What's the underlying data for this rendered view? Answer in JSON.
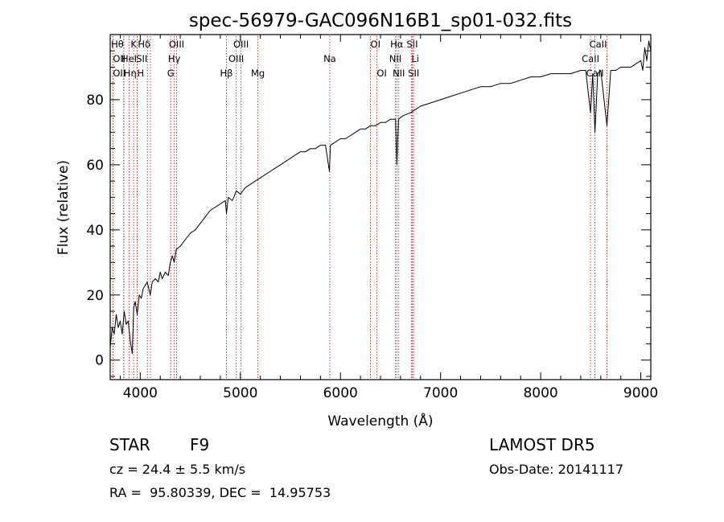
{
  "chart_data": {
    "type": "line",
    "title": "spec-56979-GAC096N16B1_sp01-032.fits",
    "xlabel": "Wavelength (Å)",
    "ylabel": "Flux (relative)",
    "xlim": [
      3700,
      9100
    ],
    "ylim": [
      -6,
      100
    ],
    "x_ticks": [
      4000,
      5000,
      6000,
      7000,
      8000,
      9000
    ],
    "y_ticks": [
      0,
      20,
      40,
      60,
      80
    ],
    "grid": false,
    "line_color": "#000000",
    "marker_color": "#cc2222",
    "series": [
      {
        "points": [
          [
            3700,
            4
          ],
          [
            3720,
            10
          ],
          [
            3740,
            8
          ],
          [
            3760,
            14
          ],
          [
            3780,
            10
          ],
          [
            3800,
            12
          ],
          [
            3820,
            8
          ],
          [
            3840,
            15
          ],
          [
            3860,
            11
          ],
          [
            3880,
            12
          ],
          [
            3900,
            6
          ],
          [
            3920,
            2
          ],
          [
            3935,
            16
          ],
          [
            3950,
            18
          ],
          [
            3970,
            14
          ],
          [
            3990,
            20
          ],
          [
            4010,
            19
          ],
          [
            4030,
            22
          ],
          [
            4050,
            23
          ],
          [
            4070,
            24
          ],
          [
            4100,
            20
          ],
          [
            4120,
            24
          ],
          [
            4150,
            25
          ],
          [
            4180,
            24
          ],
          [
            4200,
            27
          ],
          [
            4220,
            25
          ],
          [
            4250,
            27
          ],
          [
            4280,
            26
          ],
          [
            4300,
            30
          ],
          [
            4320,
            32
          ],
          [
            4340,
            30
          ],
          [
            4360,
            34
          ],
          [
            4400,
            35
          ],
          [
            4450,
            37
          ],
          [
            4500,
            39
          ],
          [
            4550,
            40
          ],
          [
            4600,
            42
          ],
          [
            4650,
            44
          ],
          [
            4700,
            46
          ],
          [
            4750,
            47
          ],
          [
            4800,
            48
          ],
          [
            4850,
            49
          ],
          [
            4861,
            45
          ],
          [
            4880,
            50
          ],
          [
            4920,
            49
          ],
          [
            4960,
            52
          ],
          [
            5000,
            51
          ],
          [
            5050,
            53
          ],
          [
            5100,
            54
          ],
          [
            5150,
            55
          ],
          [
            5200,
            56
          ],
          [
            5250,
            57
          ],
          [
            5300,
            58
          ],
          [
            5350,
            59
          ],
          [
            5400,
            60
          ],
          [
            5450,
            61
          ],
          [
            5500,
            62
          ],
          [
            5550,
            63
          ],
          [
            5600,
            64
          ],
          [
            5650,
            64
          ],
          [
            5700,
            65
          ],
          [
            5750,
            65
          ],
          [
            5800,
            66
          ],
          [
            5850,
            66
          ],
          [
            5890,
            58
          ],
          [
            5900,
            66
          ],
          [
            5950,
            67
          ],
          [
            6000,
            68
          ],
          [
            6050,
            68
          ],
          [
            6100,
            69
          ],
          [
            6150,
            70
          ],
          [
            6200,
            71
          ],
          [
            6250,
            71
          ],
          [
            6300,
            72
          ],
          [
            6350,
            72
          ],
          [
            6400,
            73
          ],
          [
            6450,
            73
          ],
          [
            6500,
            74
          ],
          [
            6550,
            74
          ],
          [
            6563,
            60
          ],
          [
            6580,
            74
          ],
          [
            6620,
            75
          ],
          [
            6700,
            76
          ],
          [
            6750,
            77
          ],
          [
            6800,
            78
          ],
          [
            6900,
            79
          ],
          [
            7000,
            80
          ],
          [
            7100,
            81
          ],
          [
            7200,
            82
          ],
          [
            7300,
            83
          ],
          [
            7400,
            84
          ],
          [
            7500,
            84
          ],
          [
            7600,
            85
          ],
          [
            7700,
            85
          ],
          [
            7800,
            86
          ],
          [
            7900,
            87
          ],
          [
            8000,
            87
          ],
          [
            8100,
            88
          ],
          [
            8200,
            88
          ],
          [
            8300,
            88
          ],
          [
            8400,
            89
          ],
          [
            8450,
            89
          ],
          [
            8498,
            76
          ],
          [
            8520,
            88
          ],
          [
            8542,
            70
          ],
          [
            8570,
            88
          ],
          [
            8600,
            89
          ],
          [
            8662,
            72
          ],
          [
            8700,
            89
          ],
          [
            8750,
            89
          ],
          [
            8800,
            90
          ],
          [
            8850,
            90
          ],
          [
            8900,
            90
          ],
          [
            8950,
            91
          ],
          [
            9000,
            92
          ],
          [
            9020,
            89
          ],
          [
            9040,
            96
          ],
          [
            9060,
            92
          ],
          [
            9080,
            98
          ],
          [
            9100,
            95
          ]
        ]
      }
    ],
    "line_markers": [
      {
        "x": 3835,
        "label": "Hθ",
        "row": 0,
        "anchor": "end"
      },
      {
        "x": 3727,
        "label": "OII",
        "row": 1,
        "anchor": "start"
      },
      {
        "x": 3727,
        "label": "OII",
        "row": 2,
        "anchor": "start"
      },
      {
        "x": 3889,
        "label": "HeI",
        "row": 1,
        "anchor": "middle"
      },
      {
        "x": 3835,
        "label": "Hη",
        "row": 2,
        "anchor": "start"
      },
      {
        "x": 3934,
        "label": "K",
        "row": 0,
        "anchor": "middle"
      },
      {
        "x": 3969,
        "label": "H",
        "row": 2,
        "anchor": "start"
      },
      {
        "x": 4072,
        "label": "SII",
        "row": 1,
        "anchor": "end"
      },
      {
        "x": 4102,
        "label": "Hδ",
        "row": 0,
        "anchor": "end"
      },
      {
        "x": 4340,
        "label": "Hγ",
        "row": 1,
        "anchor": "middle"
      },
      {
        "x": 4304,
        "label": "G",
        "row": 2,
        "anchor": "middle"
      },
      {
        "x": 4363,
        "label": "OIII",
        "row": 0,
        "anchor": "middle"
      },
      {
        "x": 4861,
        "label": "Hβ",
        "row": 2,
        "anchor": "middle"
      },
      {
        "x": 4959,
        "label": "OIII",
        "row": 1,
        "anchor": "middle"
      },
      {
        "x": 5007,
        "label": "OIII",
        "row": 0,
        "anchor": "middle"
      },
      {
        "x": 5175,
        "label": "Mg",
        "row": 2,
        "anchor": "middle"
      },
      {
        "x": 5893,
        "label": "Na",
        "row": 1,
        "anchor": "middle"
      },
      {
        "x": 6300,
        "label": "OI",
        "row": 0,
        "anchor": "start"
      },
      {
        "x": 6363,
        "label": "OI",
        "row": 2,
        "anchor": "start"
      },
      {
        "x": 6548,
        "label": "NII",
        "row": 1,
        "anchor": "middle"
      },
      {
        "x": 6563,
        "label": "Hα",
        "row": 0,
        "anchor": "middle"
      },
      {
        "x": 6583,
        "label": "NII",
        "row": 2,
        "anchor": "middle"
      },
      {
        "x": 6708,
        "label": "Li",
        "row": 1,
        "anchor": "start"
      },
      {
        "x": 6717,
        "label": "SII",
        "row": 0,
        "anchor": "middle"
      },
      {
        "x": 6731,
        "label": "SII",
        "row": 2,
        "anchor": "middle"
      },
      {
        "x": 8498,
        "label": "CaII",
        "row": 1,
        "anchor": "middle"
      },
      {
        "x": 8542,
        "label": "CaII",
        "row": 2,
        "anchor": "middle"
      },
      {
        "x": 8662,
        "label": "CaII",
        "row": 0,
        "anchor": "end"
      }
    ]
  },
  "footer": {
    "class_text": "STAR",
    "subclass_text": "F9",
    "survey_text": "LAMOST DR5",
    "cz_text": "cz = 24.4 ± 5.5 km/s",
    "obs_date_text": "Obs-Date: 20141117",
    "coords_text": "RA =  95.80339, DEC =  14.95753"
  }
}
